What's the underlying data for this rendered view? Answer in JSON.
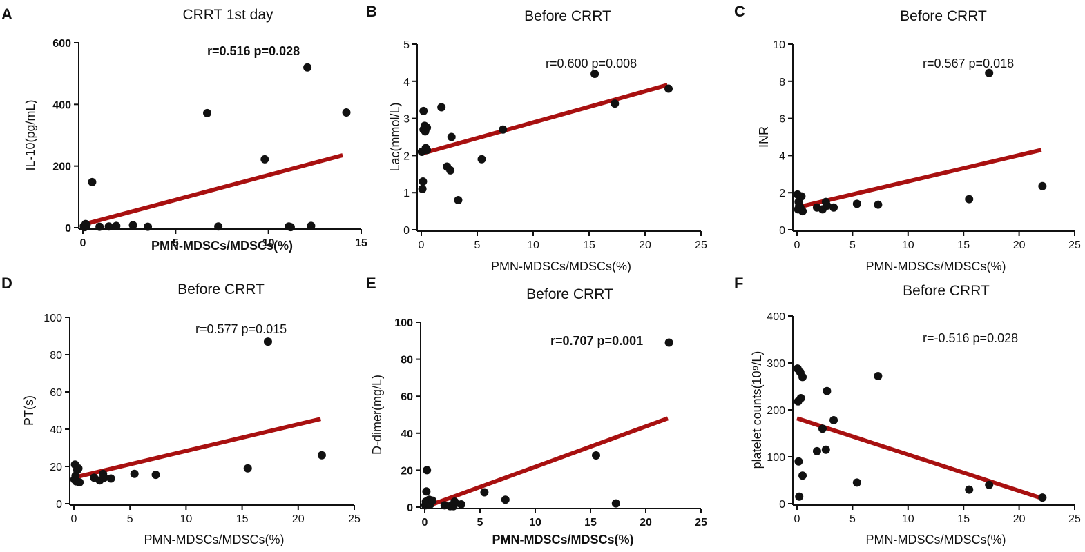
{
  "colors": {
    "points": "#111111",
    "fit_line": "#a81010",
    "axis": "#111111"
  },
  "chart_data": [
    {
      "panel": "A",
      "type": "scatter",
      "title": "CRRT 1st day",
      "xlabel": "PMN-MDSCs/MDSCs(%)",
      "ylabel": "IL-10(pg/mL)",
      "xlim": [
        0,
        15
      ],
      "ylim": [
        0,
        600
      ],
      "xticks": [
        0,
        5,
        10,
        15
      ],
      "yticks": [
        0,
        200,
        400,
        600
      ],
      "annotation": "r=0.516 p=0.028",
      "bold_labels": true,
      "points": [
        [
          0.05,
          5
        ],
        [
          0.1,
          2
        ],
        [
          0.15,
          12
        ],
        [
          0.2,
          8
        ],
        [
          0.5,
          148
        ],
        [
          0.9,
          3
        ],
        [
          1.4,
          4
        ],
        [
          1.8,
          6
        ],
        [
          2.7,
          8
        ],
        [
          3.5,
          3
        ],
        [
          6.7,
          372
        ],
        [
          7.3,
          4
        ],
        [
          9.8,
          222
        ],
        [
          11.1,
          4
        ],
        [
          11.2,
          2
        ],
        [
          12.3,
          6
        ],
        [
          12.1,
          520
        ],
        [
          14.2,
          374
        ]
      ],
      "fit": {
        "x": [
          0,
          14
        ],
        "y": [
          10,
          235
        ]
      }
    },
    {
      "panel": "B",
      "type": "scatter",
      "title": "Before CRRT",
      "xlabel": "PMN-MDSCs/MDSCs(%)",
      "ylabel": "Lac(mmol/L)",
      "xlim": [
        0,
        25
      ],
      "ylim": [
        0,
        5
      ],
      "xticks": [
        0,
        5,
        10,
        15,
        20,
        25
      ],
      "yticks": [
        0,
        1,
        2,
        3,
        4,
        5
      ],
      "annotation": "r=0.600 p=0.008",
      "bold_labels": false,
      "points": [
        [
          0.05,
          2.1
        ],
        [
          0.1,
          1.1
        ],
        [
          0.15,
          1.3
        ],
        [
          0.2,
          2.7
        ],
        [
          0.2,
          3.2
        ],
        [
          0.3,
          2.8
        ],
        [
          0.35,
          2.65
        ],
        [
          0.4,
          2.2
        ],
        [
          0.5,
          2.75
        ],
        [
          0.5,
          2.15
        ],
        [
          1.8,
          3.3
        ],
        [
          2.3,
          1.7
        ],
        [
          2.6,
          1.6
        ],
        [
          2.7,
          2.5
        ],
        [
          3.3,
          0.8
        ],
        [
          5.4,
          1.9
        ],
        [
          7.3,
          2.7
        ],
        [
          15.5,
          4.2
        ],
        [
          17.3,
          3.4
        ],
        [
          22.1,
          3.8
        ]
      ],
      "fit": {
        "x": [
          0,
          22
        ],
        "y": [
          2.05,
          3.9
        ]
      }
    },
    {
      "panel": "C",
      "type": "scatter",
      "title": "Before CRRT",
      "xlabel": "PMN-MDSCs/MDSCs(%)",
      "ylabel": "INR",
      "xlim": [
        0,
        25
      ],
      "ylim": [
        0,
        10
      ],
      "xticks": [
        0,
        5,
        10,
        15,
        20,
        25
      ],
      "yticks": [
        0,
        2,
        4,
        6,
        8,
        10
      ],
      "annotation": "r=0.567 p=0.018",
      "bold_labels": false,
      "points": [
        [
          0.05,
          1.9
        ],
        [
          0.1,
          1.1
        ],
        [
          0.15,
          1.5
        ],
        [
          0.2,
          1.3
        ],
        [
          0.3,
          1.2
        ],
        [
          0.4,
          1.8
        ],
        [
          0.5,
          1.0
        ],
        [
          1.8,
          1.2
        ],
        [
          2.3,
          1.1
        ],
        [
          2.6,
          1.5
        ],
        [
          2.7,
          1.3
        ],
        [
          3.3,
          1.2
        ],
        [
          5.4,
          1.4
        ],
        [
          7.3,
          1.35
        ],
        [
          15.5,
          1.65
        ],
        [
          17.3,
          8.45
        ],
        [
          22.1,
          2.35
        ]
      ],
      "fit": {
        "x": [
          0,
          22
        ],
        "y": [
          1.2,
          4.3
        ]
      }
    },
    {
      "panel": "D",
      "type": "scatter",
      "title": "Before CRRT",
      "xlabel": "PMN-MDSCs/MDSCs(%)",
      "ylabel": "PT(s)",
      "xlim": [
        0,
        25
      ],
      "ylim": [
        0,
        100
      ],
      "xticks": [
        0,
        5,
        10,
        15,
        20,
        25
      ],
      "yticks": [
        0,
        20,
        40,
        60,
        80,
        100
      ],
      "annotation": "r=0.577 p=0.015",
      "bold_labels": false,
      "points": [
        [
          0.05,
          13
        ],
        [
          0.1,
          21
        ],
        [
          0.15,
          15
        ],
        [
          0.2,
          12
        ],
        [
          0.3,
          18
        ],
        [
          0.4,
          19
        ],
        [
          0.5,
          11.5
        ],
        [
          1.8,
          14
        ],
        [
          2.3,
          12.5
        ],
        [
          2.6,
          16
        ],
        [
          2.7,
          14
        ],
        [
          3.3,
          13.5
        ],
        [
          5.4,
          16
        ],
        [
          7.3,
          15.5
        ],
        [
          15.5,
          19
        ],
        [
          17.3,
          87
        ],
        [
          22.1,
          26
        ]
      ],
      "fit": {
        "x": [
          0,
          22
        ],
        "y": [
          14,
          45.5
        ]
      }
    },
    {
      "panel": "E",
      "type": "scatter",
      "title": "Before CRRT",
      "xlabel": "PMN-MDSCs/MDSCs(%)",
      "ylabel": "D-dimer(mg/L)",
      "xlim": [
        0,
        25
      ],
      "ylim": [
        0,
        100
      ],
      "xticks": [
        0,
        5,
        10,
        15,
        20,
        25
      ],
      "yticks": [
        0,
        20,
        40,
        60,
        80,
        100
      ],
      "annotation": "r=0.707 p=0.001",
      "bold_labels": true,
      "points": [
        [
          0.05,
          1
        ],
        [
          0.1,
          3
        ],
        [
          0.15,
          8.5
        ],
        [
          0.2,
          20
        ],
        [
          0.3,
          2
        ],
        [
          0.4,
          4
        ],
        [
          0.5,
          1.5
        ],
        [
          0.7,
          3.5
        ],
        [
          1.8,
          1
        ],
        [
          2.3,
          0.5
        ],
        [
          2.6,
          0.5
        ],
        [
          2.7,
          3
        ],
        [
          3.3,
          1.5
        ],
        [
          5.4,
          8
        ],
        [
          7.3,
          4
        ],
        [
          15.5,
          28
        ],
        [
          17.3,
          2
        ],
        [
          22.1,
          89
        ]
      ],
      "fit": {
        "x": [
          0,
          22
        ],
        "y": [
          0,
          48
        ]
      }
    },
    {
      "panel": "F",
      "type": "scatter",
      "title": "Before CRRT",
      "xlabel": "PMN-MDSCs/MDSCs(%)",
      "ylabel": "platelet counts(10⁹/L)",
      "xlim": [
        0,
        25
      ],
      "ylim": [
        0,
        400
      ],
      "xticks": [
        0,
        5,
        10,
        15,
        20,
        25
      ],
      "yticks": [
        0,
        100,
        200,
        300,
        400
      ],
      "annotation": "r=-0.516 p=0.028",
      "bold_labels": false,
      "points": [
        [
          0.05,
          288
        ],
        [
          0.1,
          218
        ],
        [
          0.15,
          90
        ],
        [
          0.2,
          15
        ],
        [
          0.3,
          280
        ],
        [
          0.35,
          225
        ],
        [
          0.5,
          270
        ],
        [
          0.5,
          60
        ],
        [
          1.8,
          112
        ],
        [
          2.3,
          160
        ],
        [
          2.6,
          115
        ],
        [
          2.7,
          240
        ],
        [
          3.3,
          178
        ],
        [
          5.4,
          45
        ],
        [
          7.3,
          272
        ],
        [
          15.5,
          30
        ],
        [
          17.3,
          40
        ],
        [
          22.1,
          13
        ]
      ],
      "fit": {
        "x": [
          0,
          22
        ],
        "y": [
          182,
          12
        ]
      }
    }
  ]
}
